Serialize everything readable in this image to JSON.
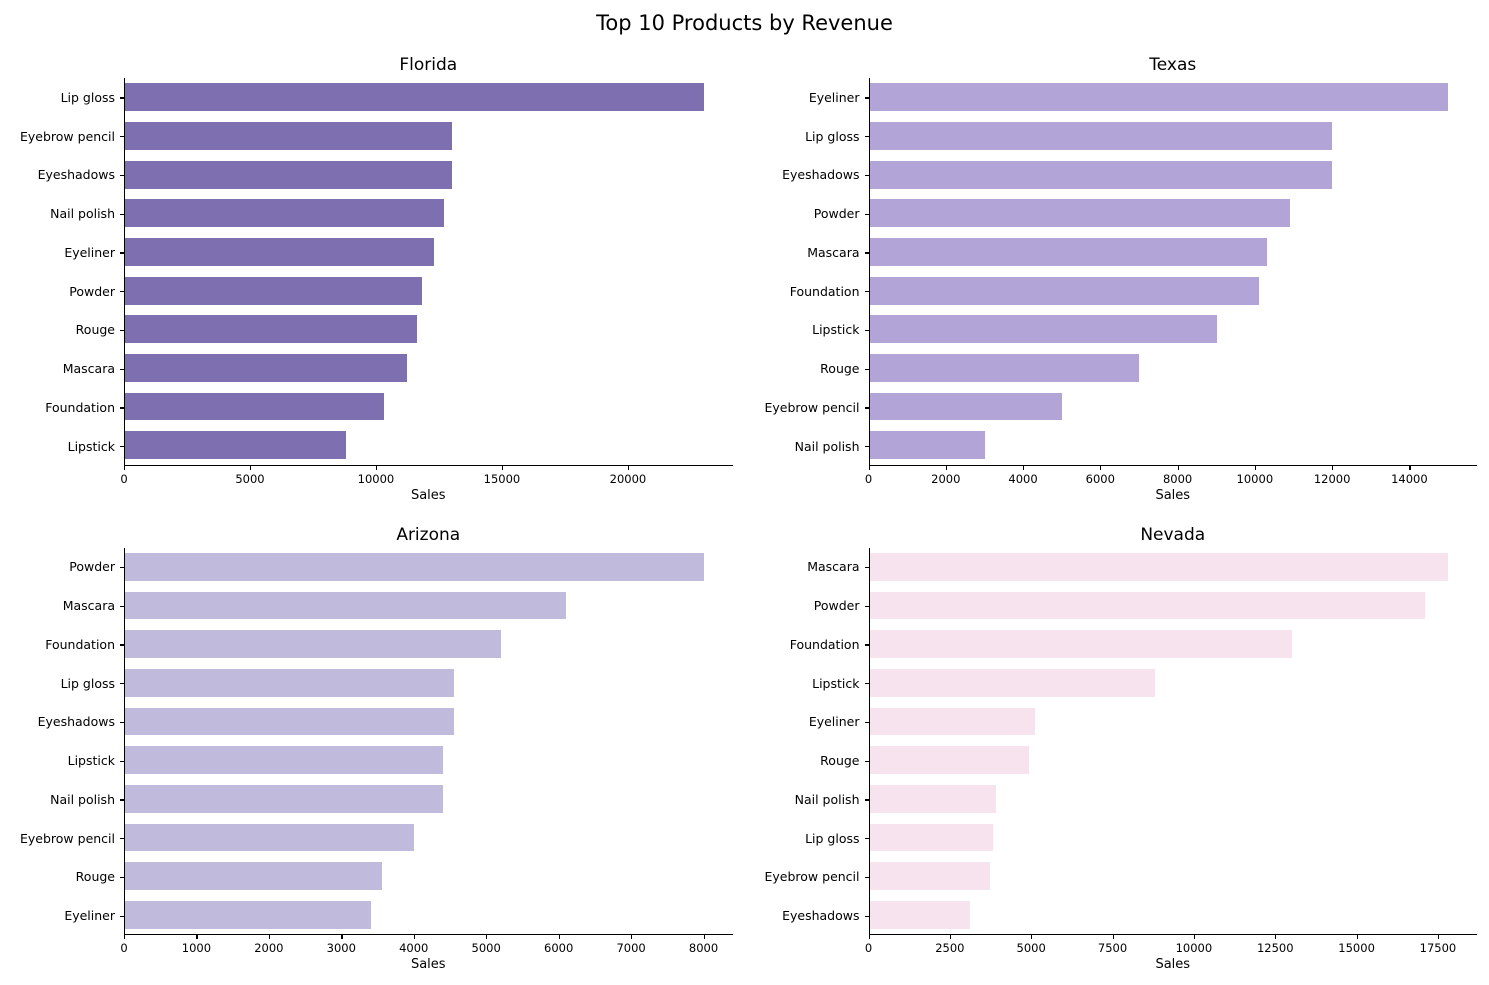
{
  "figure": {
    "title": "Top 10 Products by Revenue"
  },
  "chart_data": [
    {
      "type": "bar",
      "orientation": "horizontal",
      "title": "Florida",
      "xlabel": "Sales",
      "ylabel": "",
      "bar_color": "#7d6fb0",
      "xlim": [
        0,
        24150
      ],
      "xticks": [
        0,
        5000,
        10000,
        15000,
        20000
      ],
      "grid": false,
      "legend": null,
      "categories": [
        "Lip gloss",
        "Eyebrow pencil",
        "Eyeshadows",
        "Nail polish",
        "Eyeliner",
        "Powder",
        "Rouge",
        "Mascara",
        "Foundation",
        "Lipstick"
      ],
      "values": [
        23000,
        13000,
        13000,
        12700,
        12300,
        11800,
        11600,
        11200,
        10300,
        8800
      ]
    },
    {
      "type": "bar",
      "orientation": "horizontal",
      "title": "Texas",
      "xlabel": "Sales",
      "ylabel": "",
      "bar_color": "#b3a4d8",
      "xlim": [
        0,
        15750
      ],
      "xticks": [
        0,
        2000,
        4000,
        6000,
        8000,
        10000,
        12000,
        14000
      ],
      "grid": false,
      "legend": null,
      "categories": [
        "Eyeliner",
        "Lip gloss",
        "Eyeshadows",
        "Powder",
        "Mascara",
        "Foundation",
        "Lipstick",
        "Rouge",
        "Eyebrow pencil",
        "Nail polish"
      ],
      "values": [
        15000,
        12000,
        12000,
        10900,
        10300,
        10100,
        9000,
        7000,
        5000,
        3000
      ]
    },
    {
      "type": "bar",
      "orientation": "horizontal",
      "title": "Arizona",
      "xlabel": "Sales",
      "ylabel": "",
      "bar_color": "#c0badc",
      "xlim": [
        0,
        8400
      ],
      "xticks": [
        0,
        1000,
        2000,
        3000,
        4000,
        5000,
        6000,
        7000,
        8000
      ],
      "grid": false,
      "legend": null,
      "categories": [
        "Powder",
        "Mascara",
        "Foundation",
        "Lip gloss",
        "Eyeshadows",
        "Lipstick",
        "Nail polish",
        "Eyebrow pencil",
        "Rouge",
        "Eyeliner"
      ],
      "values": [
        8000,
        6100,
        5200,
        4550,
        4550,
        4400,
        4400,
        4000,
        3550,
        3400
      ]
    },
    {
      "type": "bar",
      "orientation": "horizontal",
      "title": "Nevada",
      "xlabel": "Sales",
      "ylabel": "",
      "bar_color": "#f7e3ed",
      "xlim": [
        0,
        18700
      ],
      "xticks": [
        0,
        2500,
        5000,
        7500,
        10000,
        12500,
        15000,
        17500
      ],
      "grid": false,
      "legend": null,
      "categories": [
        "Mascara",
        "Powder",
        "Foundation",
        "Lipstick",
        "Eyeliner",
        "Rouge",
        "Nail polish",
        "Lip gloss",
        "Eyebrow pencil",
        "Eyeshadows"
      ],
      "values": [
        17800,
        17100,
        13000,
        8800,
        5100,
        4900,
        3900,
        3800,
        3700,
        3100
      ]
    }
  ]
}
